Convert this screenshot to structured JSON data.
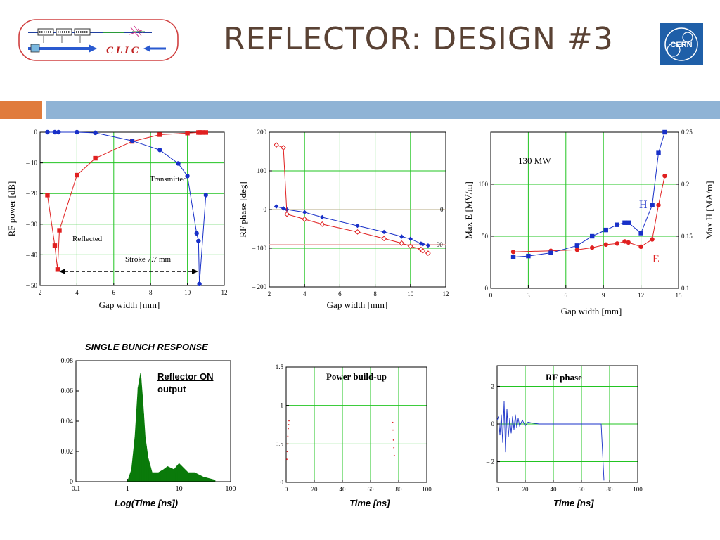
{
  "slide": {
    "title": "REFLECTOR: DESIGN #3",
    "logo_text": "C L I C",
    "cern_logo_text": "CERN",
    "colors": {
      "title": "#5a4234",
      "accent_orange": "#e07b3c",
      "accent_blue": "#8fb3d5",
      "cern_blue": "#1f5fa8"
    }
  },
  "chart_data": [
    {
      "type": "line",
      "xlabel": "Gap width [mm]",
      "ylabel": "RF power [dB]",
      "xlim": [
        2,
        12
      ],
      "ylim": [
        -50,
        0
      ],
      "xticks": [
        "2",
        "4",
        "6",
        "8",
        "10",
        "12"
      ],
      "yticks": [
        "0",
        "– 10",
        "– 20",
        "– 30",
        "– 40",
        "– 50"
      ],
      "grid": true,
      "annotations": {
        "transmitted": "Transmitted",
        "reflected": "Reflected",
        "stroke": "Stroke 7.7 mm"
      },
      "series": [
        {
          "name": "Reflected",
          "color": "#e02020",
          "marker": "square",
          "x": [
            2.4,
            2.8,
            2.95,
            3.05,
            4,
            5,
            7,
            8.5,
            10,
            10.6,
            10.7,
            10.8,
            11
          ],
          "y": [
            -20.5,
            -37,
            -44.8,
            -32,
            -14,
            -8.5,
            -3,
            -0.8,
            -0.3,
            -0.1,
            -0.1,
            -0.1,
            -0.1
          ]
        },
        {
          "name": "Transmitted",
          "color": "#1830c8",
          "marker": "circle",
          "x": [
            2.4,
            2.8,
            3,
            4,
            5,
            7,
            8.5,
            9.5,
            10,
            10.5,
            10.6,
            10.65,
            11
          ],
          "y": [
            0,
            0,
            0,
            0,
            -0.2,
            -2.8,
            -5.8,
            -10.2,
            -14.3,
            -33,
            -35.5,
            -49.5,
            -20.5
          ]
        }
      ]
    },
    {
      "type": "line",
      "xlabel": "Gap width [mm]",
      "ylabel": "RF phase [deg]",
      "xlim": [
        2,
        12
      ],
      "ylim": [
        -200,
        200
      ],
      "xticks": [
        "2",
        "4",
        "6",
        "8",
        "10",
        "12"
      ],
      "yticks": [
        "200",
        "100",
        "0",
        "– 100",
        "– 200"
      ],
      "right_labels": [
        "0",
        "– 90"
      ],
      "grid": true,
      "series": [
        {
          "name": "",
          "color": "#1830c8",
          "marker": "diamond",
          "x": [
            2.4,
            2.8,
            3,
            4,
            5,
            7,
            8.5,
            9.5,
            10,
            10.6,
            10.7,
            11
          ],
          "y": [
            8,
            3,
            0,
            -7,
            -20,
            -42,
            -58,
            -70,
            -76,
            -88,
            -90,
            -93
          ]
        },
        {
          "name": "",
          "color": "#e02020",
          "marker": "open-diamond",
          "x": [
            2.4,
            2.8,
            3,
            4,
            5,
            7,
            8.5,
            9.5,
            10,
            10.6,
            10.7,
            11
          ],
          "y": [
            167,
            160,
            -12,
            -25,
            -38,
            -58,
            -75,
            -87,
            -95,
            -103,
            -107,
            -113
          ]
        }
      ]
    },
    {
      "type": "line",
      "xlabel": "Gap width [mm]",
      "ylabel": "Max E [MV/m]",
      "ylabel_right": "Max H [MA/m]",
      "annotation": "130 MW",
      "xlim": [
        0,
        15
      ],
      "ylim": [
        0,
        150
      ],
      "ylim_right": [
        0.1,
        0.25
      ],
      "xticks": [
        "0",
        "3",
        "6",
        "9",
        "12",
        "15"
      ],
      "yticks": [
        "0",
        "50",
        "100"
      ],
      "yticks_right": [
        "0.1",
        "0.15",
        "0.2",
        "0.25"
      ],
      "grid": true,
      "series": [
        {
          "name": "E",
          "color": "#e02020",
          "marker": "circle",
          "x": [
            1.8,
            4.8,
            6.9,
            8.1,
            9.2,
            10.1,
            10.7,
            11.0,
            12.0,
            12.9,
            13.4,
            13.9
          ],
          "y": [
            35,
            36,
            37,
            39,
            42,
            43,
            45,
            44,
            40,
            47,
            80,
            108
          ]
        },
        {
          "name": "H",
          "color": "#1830c8",
          "marker": "square",
          "x": [
            1.8,
            3.0,
            4.8,
            6.9,
            8.1,
            9.2,
            10.1,
            10.7,
            11.0,
            12.0,
            12.9,
            13.4,
            13.9
          ],
          "y": [
            30,
            31,
            34,
            41,
            50,
            56,
            61,
            63,
            63,
            53,
            80,
            130,
            150
          ]
        }
      ]
    },
    {
      "type": "area",
      "title": "SINGLE BUNCH RESPONSE",
      "inner_label_line1": "Reflector ON",
      "inner_label_line2": "output",
      "xlabel": "Log(Time [ns])",
      "xscale": "log",
      "xlim": [
        0.1,
        100
      ],
      "ylim": [
        0,
        0.08
      ],
      "xticks": [
        "0.1",
        "1",
        "10",
        "100"
      ],
      "yticks": [
        "0",
        "0.02",
        "0.04",
        "0.06",
        "0.08"
      ],
      "grid": false,
      "series": [
        {
          "name": "",
          "color": "#0a7a0a",
          "x": [
            1.0,
            1.2,
            1.4,
            1.6,
            1.8,
            2.0,
            2.2,
            2.5,
            3.0,
            4.0,
            5.0,
            6.0,
            8.0,
            10.0,
            15.0,
            20.0,
            30.0,
            50.0
          ],
          "y": [
            0.0,
            0.008,
            0.03,
            0.062,
            0.072,
            0.052,
            0.03,
            0.016,
            0.006,
            0.006,
            0.008,
            0.01,
            0.008,
            0.012,
            0.006,
            0.006,
            0.003,
            0.001
          ]
        }
      ]
    },
    {
      "type": "scatter",
      "title": "Power build-up",
      "xlabel": "Time [ns]",
      "xlim": [
        0,
        100
      ],
      "ylim": [
        0,
        1.5
      ],
      "xticks": [
        "0",
        "20",
        "40",
        "60",
        "80",
        "100"
      ],
      "yticks": [
        "0",
        "0.5",
        "1",
        "1.5"
      ],
      "grid": true,
      "series": [
        {
          "name": "",
          "color": "#e02020",
          "x": [
            0.5,
            0.8,
            1.0,
            1.2,
            1.5,
            1.8,
            2.0,
            75.8,
            76.0,
            76.3,
            76.6,
            76.9
          ],
          "y": [
            0.3,
            0.4,
            0.5,
            0.6,
            0.7,
            0.75,
            0.8,
            0.78,
            0.68,
            0.55,
            0.45,
            0.35
          ]
        }
      ]
    },
    {
      "type": "line",
      "title": "RF phase",
      "xlabel": "Time [ns]",
      "xlim": [
        0,
        100
      ],
      "ylim": [
        -3.1,
        3.1
      ],
      "xticks": [
        "0",
        "20",
        "40",
        "60",
        "80",
        "100"
      ],
      "yticks": [
        "2",
        "0",
        "– 2"
      ],
      "grid": true,
      "series": [
        {
          "name": "",
          "color": "#1830c8",
          "x": [
            0,
            1,
            2,
            3,
            4,
            5,
            6,
            7,
            8,
            9,
            10,
            11,
            12,
            13,
            14,
            15,
            16,
            18,
            20,
            22,
            25,
            30,
            40,
            50,
            60,
            70,
            74,
            75,
            76
          ],
          "y": [
            0.2,
            0.4,
            -0.6,
            0.5,
            -1.0,
            1.2,
            -1.5,
            0.8,
            -0.7,
            0.3,
            -0.5,
            0.4,
            -0.3,
            0.5,
            -0.2,
            0.3,
            -0.1,
            0.2,
            -0.1,
            0.1,
            0.05,
            0.0,
            0.0,
            0.0,
            0.0,
            0.0,
            0.0,
            -1.5,
            -3.0
          ]
        }
      ]
    }
  ]
}
